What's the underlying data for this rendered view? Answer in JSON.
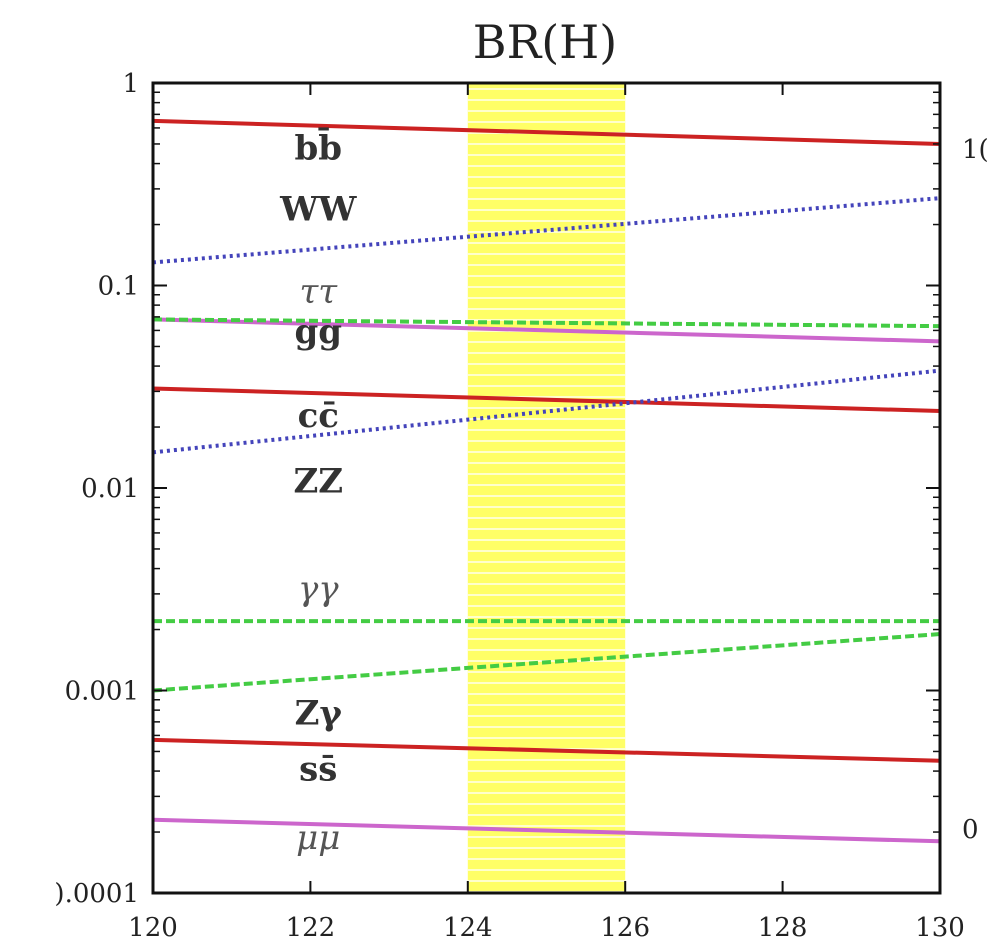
{
  "chart_data": {
    "type": "line",
    "title": "BR(H)",
    "xlabel": "",
    "ylabel": "",
    "xlim": [
      120,
      130
    ],
    "ylim": [
      0.0001,
      1
    ],
    "yscale": "log",
    "x_ticks": [
      "120",
      "122",
      "124",
      "126",
      "128",
      "130"
    ],
    "y_ticks": [
      {
        "value": 1,
        "label": "1"
      },
      {
        "value": 0.1,
        "label": "0.1"
      },
      {
        "value": 0.01,
        "label": "0.01"
      },
      {
        "value": 0.001,
        "label": "0.001"
      },
      {
        "value": 0.0001,
        "label": ").0001"
      }
    ],
    "right_axis_fragments": [
      "1(",
      "0"
    ],
    "band": {
      "x": [
        124,
        126
      ],
      "color": "#ffff66"
    },
    "grid": false,
    "series": [
      {
        "name": "bb̄",
        "label": "bb̄",
        "italic": false,
        "color": "#cc2222",
        "style": "solid",
        "x": [
          120,
          130
        ],
        "y": [
          0.65,
          0.5
        ],
        "label_at": [
          122.1,
          0.42
        ]
      },
      {
        "name": "WW",
        "label": "WW",
        "italic": false,
        "color": "#4444bb",
        "style": "dotted",
        "x": [
          120,
          130
        ],
        "y": [
          0.13,
          0.27
        ],
        "label_at": [
          122.1,
          0.21
        ]
      },
      {
        "name": "ττ",
        "label": "ττ",
        "italic": true,
        "color": "#cc66cc",
        "style": "solid",
        "x": [
          120,
          130
        ],
        "y": [
          0.068,
          0.053
        ],
        "label_at": [
          122.1,
          0.082
        ]
      },
      {
        "name": "gg",
        "label": "gg",
        "italic": false,
        "color": "#44cc44",
        "style": "dashed",
        "x": [
          120,
          130
        ],
        "y": [
          0.068,
          0.063
        ],
        "label_at": [
          122.1,
          0.052
        ]
      },
      {
        "name": "cc̄",
        "label": "cc̄",
        "italic": false,
        "color": "#cc2222",
        "style": "solid",
        "x": [
          120,
          130
        ],
        "y": [
          0.031,
          0.024
        ],
        "label_at": [
          122.1,
          0.02
        ]
      },
      {
        "name": "ZZ",
        "label": "ZZ",
        "italic": false,
        "color": "#4444bb",
        "style": "dotted",
        "x": [
          120,
          130
        ],
        "y": [
          0.015,
          0.038
        ],
        "label_at": [
          122.1,
          0.0095
        ]
      },
      {
        "name": "γγ",
        "label": "γγ",
        "italic": true,
        "color": "#44cc44",
        "style": "dashed",
        "x": [
          120,
          130
        ],
        "y": [
          0.0022,
          0.0022
        ],
        "label_at": [
          122.1,
          0.0028
        ]
      },
      {
        "name": "Zγ",
        "label": "Zγ",
        "italic": false,
        "color": "#44cc44",
        "style": "dashed",
        "x": [
          120,
          130
        ],
        "y": [
          0.001,
          0.0019
        ],
        "label_at": [
          122.1,
          0.00068
        ]
      },
      {
        "name": "ss̄",
        "label": "ss̄",
        "italic": false,
        "color": "#cc2222",
        "style": "solid",
        "x": [
          120,
          130
        ],
        "y": [
          0.00057,
          0.00045
        ],
        "label_at": [
          122.1,
          0.00036
        ]
      },
      {
        "name": "μμ",
        "label": "μμ",
        "italic": true,
        "color": "#cc66cc",
        "style": "solid",
        "x": [
          120,
          130
        ],
        "y": [
          0.00023,
          0.00018
        ],
        "label_at": [
          122.1,
          0.000165
        ]
      }
    ]
  }
}
